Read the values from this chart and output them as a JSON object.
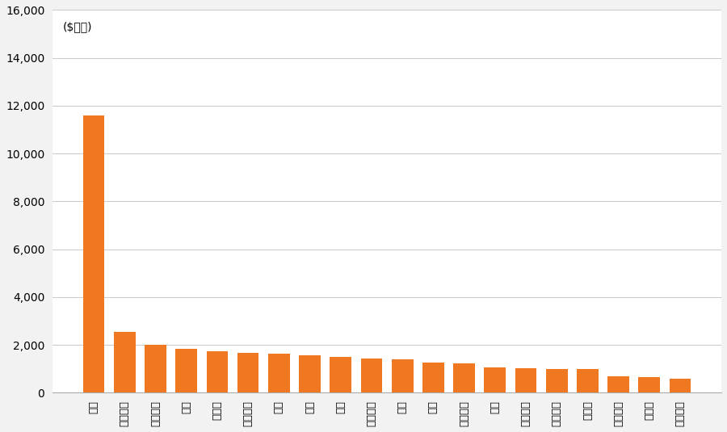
{
  "categories": [
    "華為",
    "阿里巴巴",
    "中興通訊",
    "騰訊",
    "中石油",
    "中建集團",
    "中鐵",
    "百度",
    "中車",
    "中國鐵建",
    "上汽",
    "聯想",
    "中國交建",
    "攜程",
    "中國電建",
    "美的集團",
    "中石化",
    "招商銀行",
    "比亞迪",
    "上海建工"
  ],
  "values": [
    11600,
    2550,
    2020,
    1820,
    1720,
    1660,
    1640,
    1580,
    1500,
    1440,
    1380,
    1270,
    1240,
    1050,
    1010,
    990,
    980,
    680,
    660,
    580
  ],
  "bar_color": "#F07820",
  "ylabel": "($百萬)",
  "ylim": [
    0,
    16000
  ],
  "yticks": [
    0,
    2000,
    4000,
    6000,
    8000,
    10000,
    12000,
    14000,
    16000
  ],
  "background_color": "#f2f2f2",
  "plot_bg_color": "#ffffff",
  "grid_color": "#cccccc"
}
